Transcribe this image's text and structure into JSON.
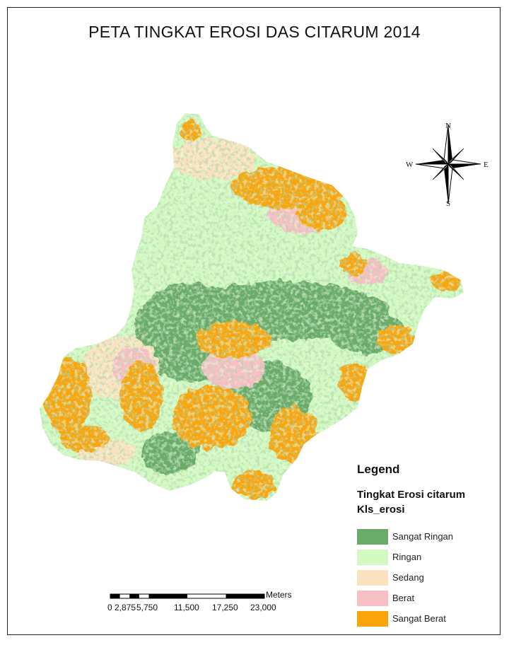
{
  "title": "PETA TINGKAT EROSI DAS CITARUM 2014",
  "compass": {
    "n": "N",
    "s": "S",
    "e": "E",
    "w": "W"
  },
  "legend": {
    "title": "Legend",
    "layer": "Tingkat Erosi citarum",
    "field": "Kls_erosi",
    "classes": [
      {
        "label": "Sangat Ringan",
        "color": "#6aab6a"
      },
      {
        "label": "Ringan",
        "color": "#d2f9c2"
      },
      {
        "label": "Sedang",
        "color": "#fbe3c0"
      },
      {
        "label": "Berat",
        "color": "#f8c0c4"
      },
      {
        "label": "Sangat Berat",
        "color": "#faa50a"
      }
    ]
  },
  "scale": {
    "unit": "Meters",
    "labels": [
      "0",
      "2,875",
      "5,750",
      "11,500",
      "17,250",
      "23,000"
    ]
  },
  "water_color": "#29b6e6"
}
